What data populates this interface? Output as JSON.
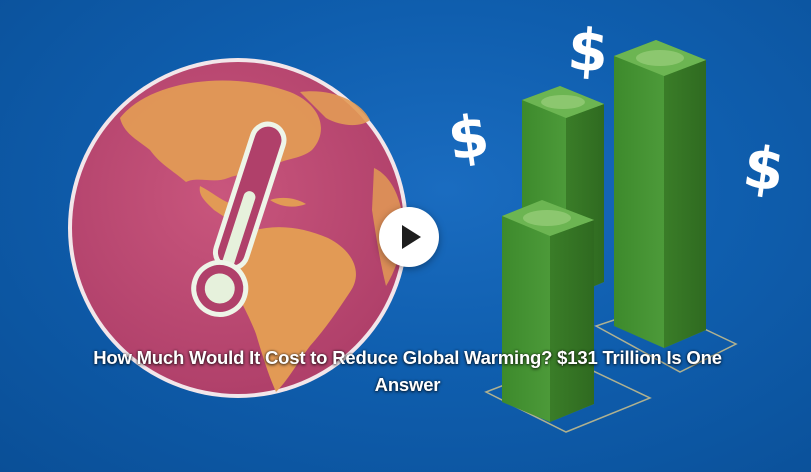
{
  "video": {
    "title": "How Much Would It Cost to Reduce Global Warming? $131 Trillion Is One Answer",
    "play_label": "Play video"
  },
  "decorations": {
    "dollar_sign": "$"
  },
  "colors": {
    "background": "#0f5eae",
    "globe": "#c24d74",
    "land": "#e29a55",
    "money_green": "#4f9a3a",
    "thermometer": "#e8f2dc"
  },
  "icons": {
    "play": "play-icon",
    "thermometer": "thermometer-icon",
    "globe": "globe-icon",
    "dollar": "dollar-icon"
  }
}
